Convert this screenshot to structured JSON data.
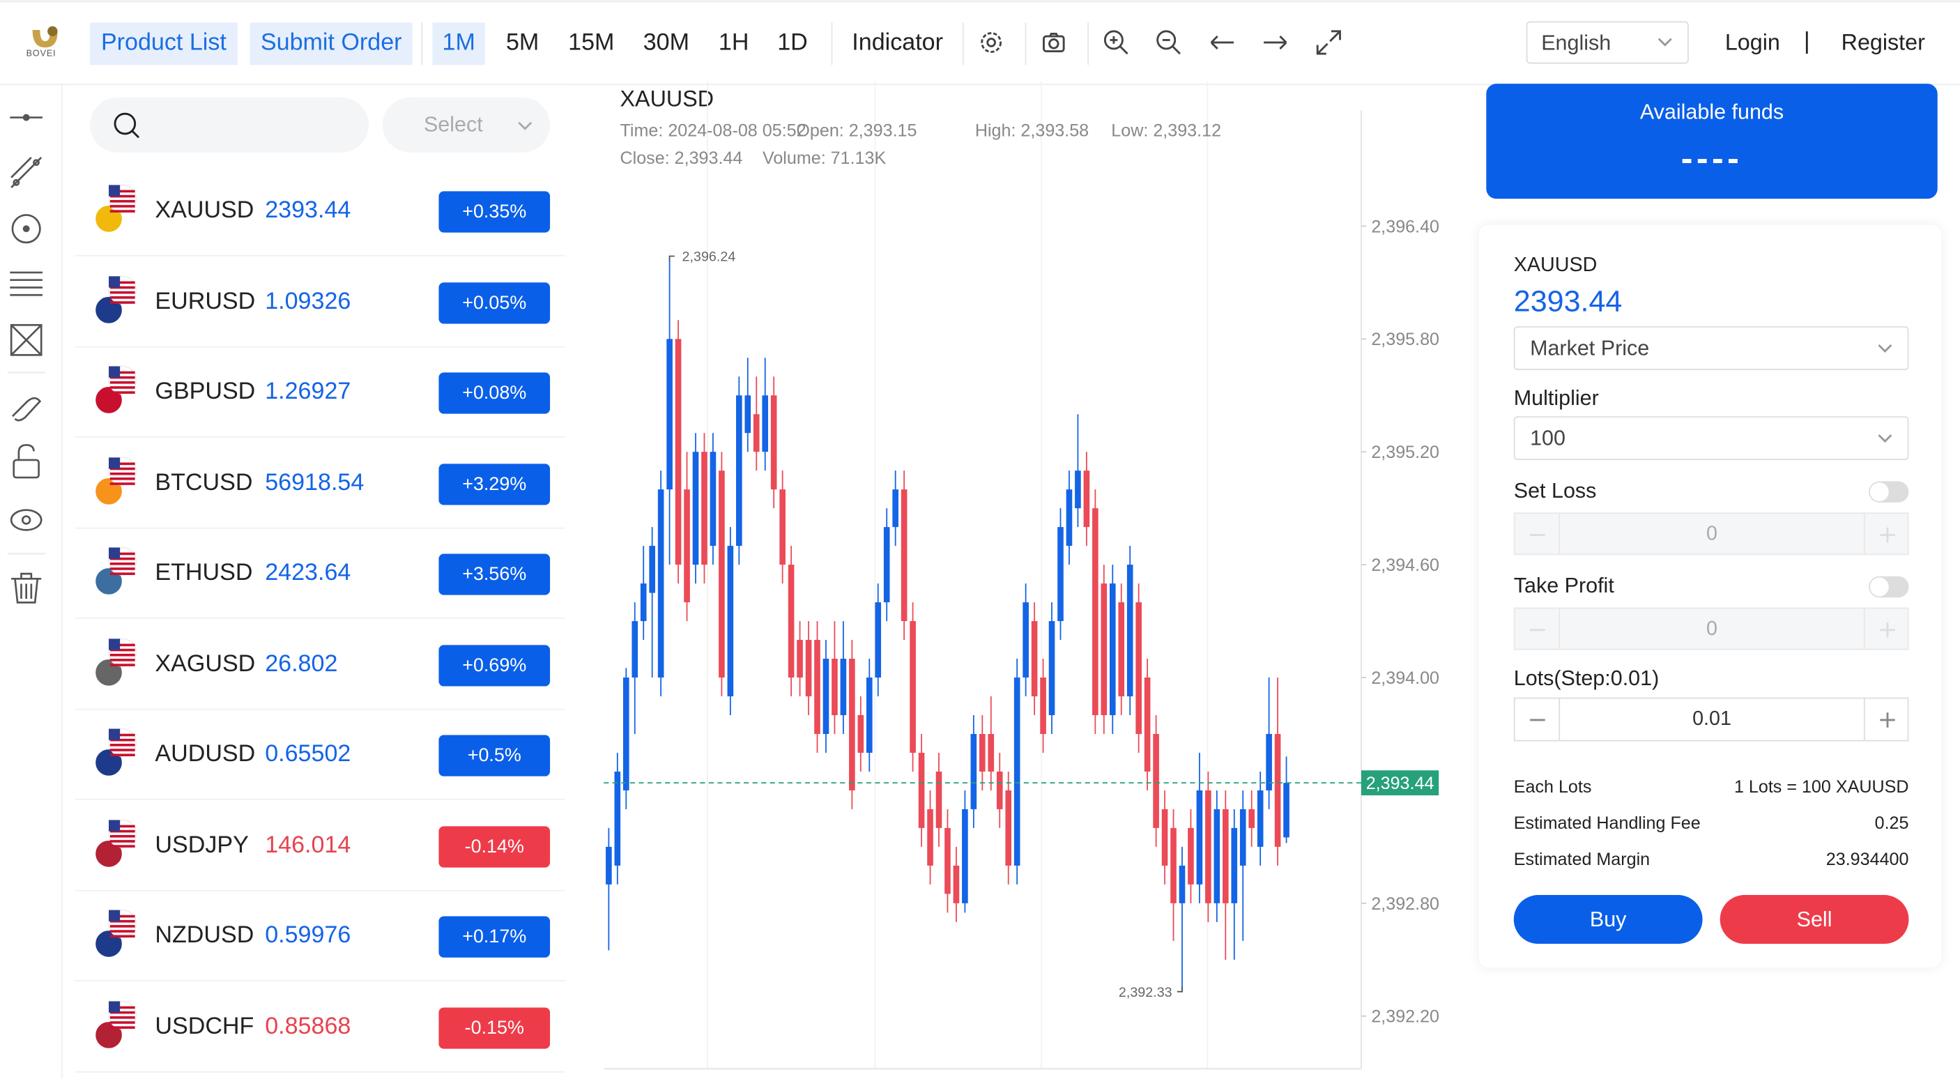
{
  "toolbar": {
    "logo": "BOVEI",
    "tabs": [
      "Product List",
      "Submit Order"
    ],
    "periods": [
      "1M",
      "5M",
      "15M",
      "30M",
      "1H",
      "1D"
    ],
    "indicator": "Indicator",
    "language": "English",
    "login": "Login",
    "separator": "|",
    "register": "Register"
  },
  "search": {
    "select": "Select"
  },
  "products": [
    {
      "symbol": "XAUUSD",
      "price": "2393.44",
      "change": "+0.35%"
    },
    {
      "symbol": "EURUSD",
      "price": "1.09326",
      "change": "+0.05%"
    },
    {
      "symbol": "GBPUSD",
      "price": "1.26927",
      "change": "+0.08%"
    },
    {
      "symbol": "BTCUSD",
      "price": "56918.54",
      "change": "+3.29%"
    },
    {
      "symbol": "ETHUSD",
      "price": "2423.64",
      "change": "+3.56%"
    },
    {
      "symbol": "XAGUSD",
      "price": "26.802",
      "change": "+0.69%"
    },
    {
      "symbol": "AUDUSD",
      "price": "0.65502",
      "change": "+0.5%"
    },
    {
      "symbol": "USDJPY",
      "price": "146.014",
      "change": "-0.14%"
    },
    {
      "symbol": "NZDUSD",
      "price": "0.59976",
      "change": "+0.17%"
    },
    {
      "symbol": "USDCHF",
      "price": "0.85868",
      "change": "-0.15%"
    }
  ],
  "chart_data": {
    "type": "candlestick",
    "title": "XAUUSD",
    "info": [
      "Time: 2024-08-08 05:52",
      "Open: 2,393.15",
      "High: 2,393.58",
      "Low: 2,393.12",
      "Close: 2,393.44",
      "Volume: 71.13K"
    ],
    "up_color": "#1464e6",
    "down_color": "#eb4a57",
    "ohlc": [
      [
        2392.9,
        2393.2,
        2392.55,
        2393.1
      ],
      [
        2393.0,
        2393.6,
        2392.9,
        2393.5
      ],
      [
        2393.4,
        2394.05,
        2393.3,
        2394.0
      ],
      [
        2394.0,
        2394.4,
        2393.7,
        2394.3
      ],
      [
        2394.3,
        2394.7,
        2394.2,
        2394.5
      ],
      [
        2394.45,
        2394.8,
        2394.0,
        2394.7
      ],
      [
        2394.0,
        2395.1,
        2393.9,
        2395.0
      ],
      [
        2395.0,
        2396.24,
        2394.6,
        2395.8
      ],
      [
        2395.8,
        2395.9,
        2394.5,
        2394.6
      ],
      [
        2395.0,
        2395.2,
        2394.3,
        2394.4
      ],
      [
        2394.6,
        2395.3,
        2394.5,
        2395.2
      ],
      [
        2395.2,
        2395.3,
        2394.5,
        2394.6
      ],
      [
        2394.7,
        2395.3,
        2394.6,
        2395.2
      ],
      [
        2395.1,
        2395.2,
        2393.9,
        2394.0
      ],
      [
        2393.9,
        2394.8,
        2393.8,
        2394.7
      ],
      [
        2394.7,
        2395.6,
        2394.6,
        2395.5
      ],
      [
        2395.3,
        2395.7,
        2395.2,
        2395.5
      ],
      [
        2395.4,
        2395.6,
        2395.1,
        2395.2
      ],
      [
        2395.2,
        2395.7,
        2395.1,
        2395.5
      ],
      [
        2395.5,
        2395.6,
        2394.9,
        2395.0
      ],
      [
        2395.0,
        2395.1,
        2394.5,
        2394.6
      ],
      [
        2394.6,
        2394.7,
        2393.9,
        2394.0
      ],
      [
        2394.2,
        2394.3,
        2393.9,
        2394.0
      ],
      [
        2394.2,
        2394.3,
        2393.8,
        2393.9
      ],
      [
        2394.2,
        2394.3,
        2393.6,
        2393.7
      ],
      [
        2393.7,
        2394.2,
        2393.6,
        2394.1
      ],
      [
        2394.1,
        2394.3,
        2393.7,
        2393.8
      ],
      [
        2393.8,
        2394.3,
        2393.7,
        2394.1
      ],
      [
        2394.1,
        2394.2,
        2393.3,
        2393.4
      ],
      [
        2393.8,
        2393.9,
        2393.5,
        2393.6
      ],
      [
        2393.6,
        2394.1,
        2393.5,
        2394.0
      ],
      [
        2394.0,
        2394.5,
        2393.9,
        2394.4
      ],
      [
        2394.4,
        2394.9,
        2394.3,
        2394.8
      ],
      [
        2394.8,
        2395.1,
        2394.7,
        2395.0
      ],
      [
        2395.0,
        2395.1,
        2394.2,
        2394.3
      ],
      [
        2394.3,
        2394.4,
        2393.5,
        2393.6
      ],
      [
        2393.6,
        2393.7,
        2393.1,
        2393.2
      ],
      [
        2393.3,
        2393.4,
        2392.9,
        2393.0
      ],
      [
        2393.5,
        2393.6,
        2393.1,
        2393.2
      ],
      [
        2393.2,
        2393.3,
        2392.75,
        2392.85
      ],
      [
        2393.0,
        2393.1,
        2392.7,
        2392.8
      ],
      [
        2392.8,
        2393.4,
        2392.75,
        2393.3
      ],
      [
        2393.3,
        2393.8,
        2393.2,
        2393.7
      ],
      [
        2393.7,
        2393.8,
        2393.4,
        2393.5
      ],
      [
        2393.7,
        2393.9,
        2393.4,
        2393.5
      ],
      [
        2393.5,
        2393.6,
        2393.2,
        2393.3
      ],
      [
        2393.4,
        2393.5,
        2392.9,
        2393.0
      ],
      [
        2393.0,
        2394.1,
        2392.9,
        2394.0
      ],
      [
        2394.0,
        2394.5,
        2393.9,
        2394.4
      ],
      [
        2394.3,
        2394.4,
        2393.8,
        2393.9
      ],
      [
        2394.0,
        2394.1,
        2393.6,
        2393.7
      ],
      [
        2393.8,
        2394.4,
        2393.7,
        2394.3
      ],
      [
        2394.3,
        2394.9,
        2394.2,
        2394.8
      ],
      [
        2394.7,
        2395.1,
        2394.6,
        2395.0
      ],
      [
        2394.9,
        2395.4,
        2394.8,
        2395.1
      ],
      [
        2395.1,
        2395.2,
        2394.7,
        2394.8
      ],
      [
        2394.9,
        2395.0,
        2393.7,
        2393.8
      ],
      [
        2394.5,
        2394.6,
        2393.7,
        2393.8
      ],
      [
        2393.8,
        2394.6,
        2393.7,
        2394.5
      ],
      [
        2394.4,
        2394.5,
        2393.8,
        2393.9
      ],
      [
        2393.9,
        2394.7,
        2393.8,
        2394.6
      ],
      [
        2394.4,
        2394.5,
        2393.6,
        2393.7
      ],
      [
        2394.0,
        2394.1,
        2393.4,
        2393.5
      ],
      [
        2393.7,
        2393.8,
        2393.1,
        2393.2
      ],
      [
        2393.3,
        2393.4,
        2392.9,
        2393.0
      ],
      [
        2393.2,
        2393.3,
        2392.6,
        2392.8
      ],
      [
        2392.8,
        2393.1,
        2392.33,
        2393.0
      ],
      [
        2393.2,
        2393.3,
        2392.8,
        2392.9
      ],
      [
        2392.9,
        2393.6,
        2392.8,
        2393.4
      ],
      [
        2393.4,
        2393.5,
        2392.7,
        2392.8
      ],
      [
        2392.8,
        2393.4,
        2392.7,
        2393.3
      ],
      [
        2393.3,
        2393.4,
        2392.5,
        2392.8
      ],
      [
        2392.8,
        2393.3,
        2392.5,
        2393.2
      ],
      [
        2393.0,
        2393.4,
        2392.6,
        2393.3
      ],
      [
        2393.3,
        2393.4,
        2393.1,
        2393.2
      ],
      [
        2393.1,
        2393.5,
        2393.0,
        2393.4
      ],
      [
        2393.4,
        2394.0,
        2393.3,
        2393.7
      ],
      [
        2393.7,
        2394.0,
        2393.0,
        2393.1
      ],
      [
        2393.15,
        2393.58,
        2393.12,
        2393.44
      ]
    ],
    "ylim": [
      2391.92,
      2397.17
    ],
    "yticks": [
      {
        "value": 2392.2,
        "label": "2,392.20"
      },
      {
        "value": 2392.8,
        "label": "2,392.80"
      },
      {
        "value": 2394.0,
        "label": "2,394.00"
      },
      {
        "value": 2394.6,
        "label": "2,394.60"
      },
      {
        "value": 2395.2,
        "label": "2,395.20"
      },
      {
        "value": 2395.8,
        "label": "2,395.80"
      },
      {
        "value": 2396.4,
        "label": "2,396.40"
      }
    ],
    "annotations": [
      {
        "value": 2396.24,
        "label": "2,396.24"
      },
      {
        "value": 2392.33,
        "label": "2,392.33"
      }
    ],
    "last_price": {
      "value": 2393.44,
      "label": "2,393.44"
    },
    "last_price_color": "#26a17a"
  },
  "order": {
    "funds_title": "Available funds",
    "funds_value": "----",
    "symbol": "XAUUSD",
    "price": "2393.44",
    "price_type": "Market Price",
    "multiplier_label": "Multiplier",
    "multiplier": "100",
    "set_loss": "Set Loss",
    "set_loss_value": "0",
    "take_profit": "Take Profit",
    "take_profit_value": "0",
    "lots_label": "Lots(Step:0.01)",
    "lots": "0.01",
    "rows": [
      [
        "Each Lots",
        "1 Lots = 100 XAUUSD"
      ],
      [
        "Estimated Handling Fee",
        "0.25"
      ],
      [
        "Estimated Margin",
        "23.934400"
      ]
    ],
    "buy": "Buy",
    "sell": "Sell"
  }
}
